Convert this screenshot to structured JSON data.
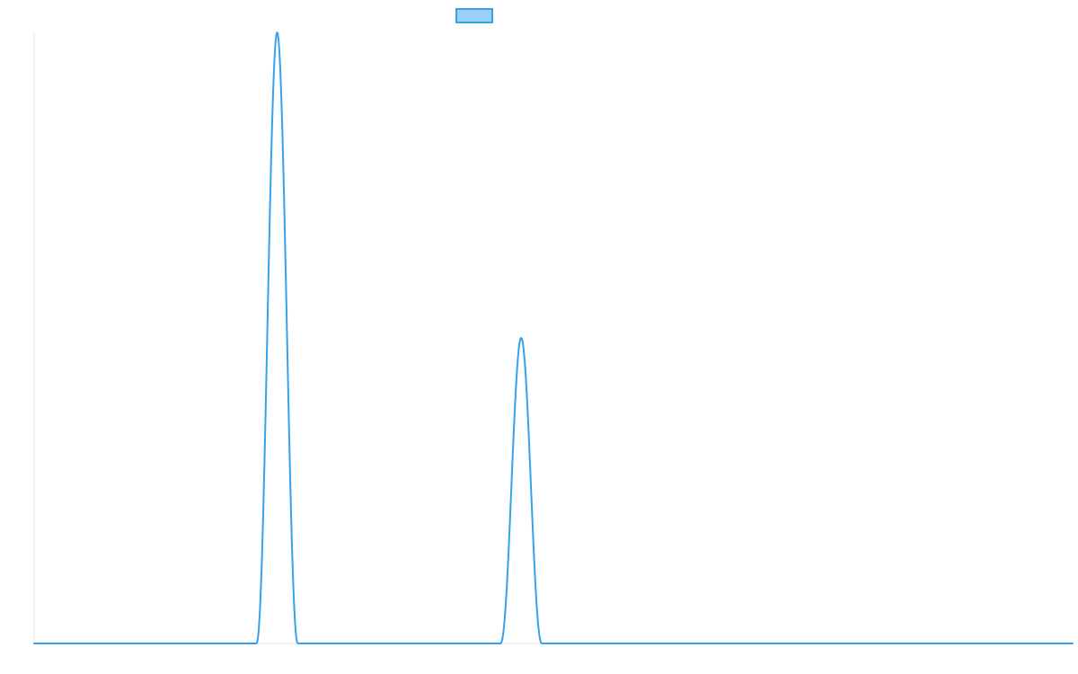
{
  "chart_data": {
    "type": "line",
    "title": "",
    "xlabel": "",
    "ylabel": "",
    "grid": false,
    "legend_position": "top",
    "xlim": [
      0,
      100
    ],
    "ylim": [
      0,
      1
    ],
    "series": [
      {
        "name": "",
        "color": "#36a2eb",
        "legend_fill": "#9ad0f5",
        "peaks": [
          {
            "center": 23.4,
            "height": 1.0,
            "half_width": 2.0
          },
          {
            "center": 46.9,
            "height": 0.5,
            "half_width": 2.0
          }
        ],
        "baseline": 0
      }
    ]
  }
}
